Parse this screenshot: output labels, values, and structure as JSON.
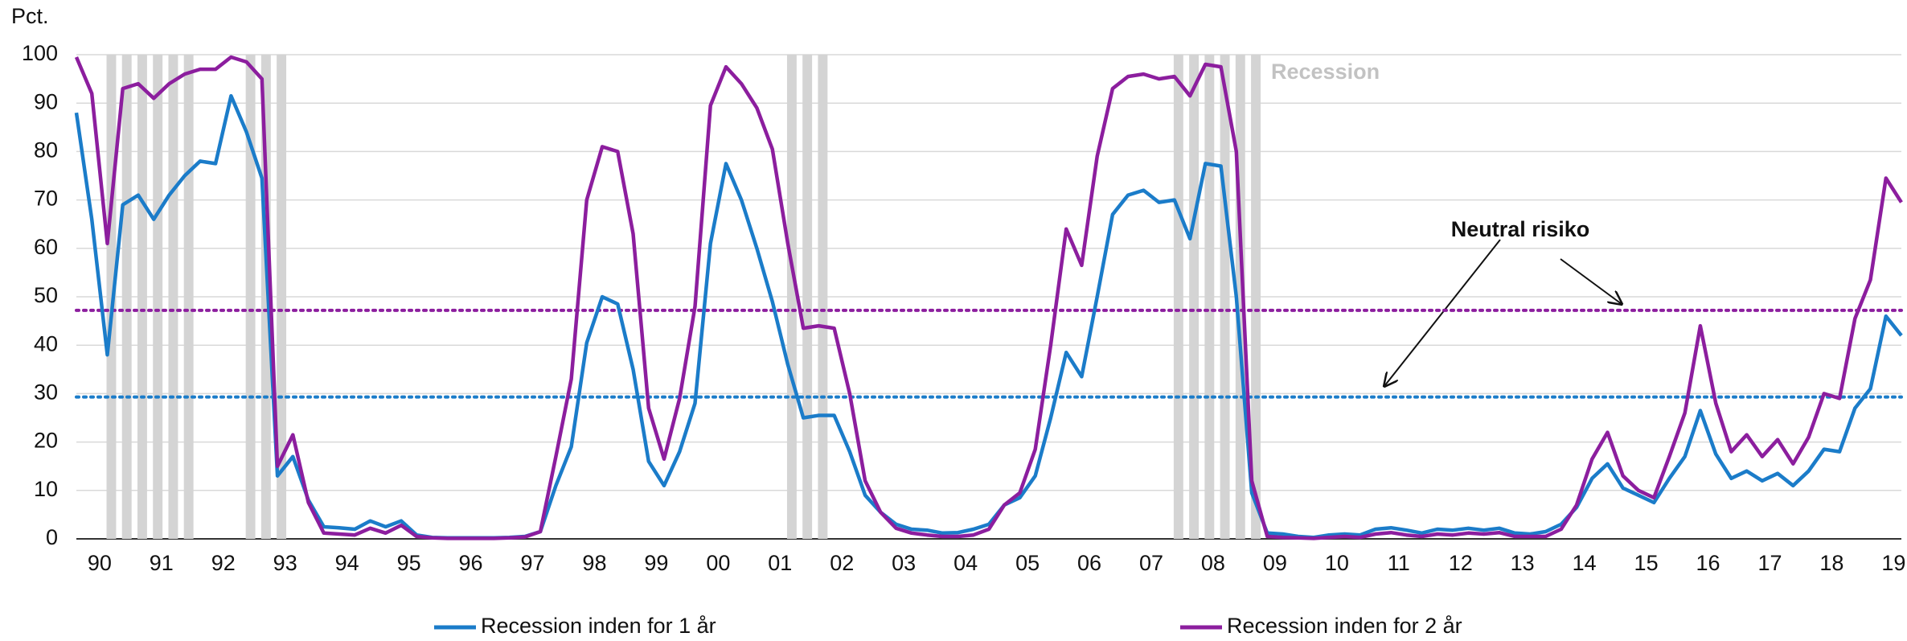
{
  "chart_data": {
    "type": "line",
    "y_label": "Pct.",
    "categories": [
      null,
      null,
      "90",
      null,
      null,
      null,
      "91",
      null,
      null,
      null,
      "92",
      null,
      null,
      null,
      "93",
      null,
      null,
      null,
      "94",
      null,
      null,
      null,
      "95",
      null,
      null,
      null,
      "96",
      null,
      null,
      null,
      "97",
      null,
      null,
      null,
      "98",
      null,
      null,
      null,
      "99",
      null,
      null,
      null,
      "00",
      null,
      null,
      null,
      "01",
      null,
      null,
      null,
      "02",
      null,
      null,
      null,
      "03",
      null,
      null,
      null,
      "04",
      null,
      null,
      null,
      "05",
      null,
      null,
      null,
      "06",
      null,
      null,
      null,
      "07",
      null,
      null,
      null,
      "08",
      null,
      null,
      null,
      "09",
      null,
      null,
      null,
      "10",
      null,
      null,
      null,
      "11",
      null,
      null,
      null,
      "12",
      null,
      null,
      null,
      "13",
      null,
      null,
      null,
      "14",
      null,
      null,
      null,
      "15",
      null,
      null,
      null,
      "16",
      null,
      null,
      null,
      "17",
      null,
      null,
      null,
      "18",
      null,
      null,
      null,
      "19"
    ],
    "series": [
      {
        "name": "Recession inden for 1 år",
        "color": "#1b7cc9",
        "values": [
          88,
          66,
          38,
          69,
          71,
          66,
          71,
          75,
          78,
          77.5,
          91.5,
          84,
          74.5,
          13,
          17,
          8,
          2.5,
          2.3,
          2,
          3.7,
          2.5,
          3.7,
          0.8,
          0.3,
          0.2,
          0.2,
          0.2,
          0.2,
          0.3,
          0.5,
          1.5,
          11,
          19,
          40.5,
          50,
          48.5,
          35,
          16,
          11,
          18,
          28,
          61,
          77.5,
          70,
          60,
          49,
          36,
          25,
          25.5,
          25.5,
          18,
          9,
          5.5,
          3,
          2,
          1.8,
          1.2,
          1.3,
          2,
          3,
          7,
          8.5,
          13,
          25,
          38.5,
          33.5,
          50,
          67,
          71,
          72,
          69.5,
          70,
          62,
          77.5,
          77,
          50,
          9.5,
          1.2,
          1,
          0.5,
          0.3,
          0.8,
          1,
          0.8,
          2,
          2.3,
          1.8,
          1.2,
          2,
          1.8,
          2.2,
          1.8,
          2.2,
          1.2,
          1,
          1.5,
          3,
          6.5,
          12.5,
          15.5,
          10.5,
          9,
          7.5,
          12.5,
          17,
          26.5,
          17.5,
          12.5,
          14,
          12,
          13.5,
          11,
          14,
          18.5,
          18,
          27,
          31,
          46,
          42
        ]
      },
      {
        "name": "Recession inden for 2 år",
        "color": "#8c1e9e",
        "values": [
          99.5,
          92,
          61,
          93,
          94,
          91,
          94,
          96,
          97,
          97,
          99.5,
          98.5,
          95,
          15,
          21.5,
          7.5,
          1.2,
          1,
          0.8,
          2.2,
          1.2,
          2.8,
          0.5,
          0.2,
          0.1,
          0.1,
          0.1,
          0.1,
          0.2,
          0.4,
          1.5,
          17,
          33,
          70,
          81,
          80,
          63,
          27,
          16.5,
          29,
          48,
          89.5,
          97.5,
          94,
          89,
          80.5,
          61,
          43.5,
          44,
          43.5,
          30,
          12,
          5.5,
          2.2,
          1.2,
          0.8,
          0.5,
          0.5,
          0.8,
          2,
          7,
          9.5,
          18.5,
          40,
          64,
          56.5,
          79,
          93,
          95.5,
          96,
          95,
          95.5,
          91.5,
          98,
          97.5,
          80,
          12,
          0.5,
          0.3,
          0.2,
          0.1,
          0.3,
          0.5,
          0.3,
          1,
          1.3,
          0.8,
          0.5,
          1,
          0.8,
          1.2,
          1,
          1.3,
          0.5,
          0.5,
          0.5,
          2,
          7,
          16.5,
          22,
          13,
          10,
          8.5,
          17,
          26,
          44,
          28,
          18,
          21.5,
          17,
          20.5,
          15.5,
          21,
          30,
          29,
          45.5,
          53.5,
          74.5,
          69.5
        ]
      }
    ],
    "recession": {
      "label": "Recession",
      "color": "#d4d4d4",
      "values": [
        0,
        0,
        1,
        1,
        1,
        1,
        1,
        1,
        0,
        0,
        0,
        1,
        1,
        1,
        0,
        0,
        0,
        0,
        0,
        0,
        0,
        0,
        0,
        0,
        0,
        0,
        0,
        0,
        0,
        0,
        0,
        0,
        0,
        0,
        0,
        0,
        0,
        0,
        0,
        0,
        0,
        0,
        0,
        0,
        0,
        0,
        1,
        1,
        1,
        0,
        0,
        0,
        0,
        0,
        0,
        0,
        0,
        0,
        0,
        0,
        0,
        0,
        0,
        0,
        0,
        0,
        0,
        0,
        0,
        0,
        0,
        1,
        1,
        1,
        1,
        1,
        1,
        0,
        0,
        0,
        0,
        0,
        0,
        0,
        0,
        0,
        0,
        0,
        0,
        0,
        0,
        0,
        0,
        0,
        0,
        0,
        0,
        0,
        0,
        0,
        0,
        0,
        0,
        0,
        0,
        0,
        0,
        0,
        0,
        0,
        0,
        0,
        0,
        0,
        0,
        0,
        0,
        0,
        0
      ]
    },
    "reference_lines": [
      {
        "value": 29.3,
        "color": "#1b7cc9"
      },
      {
        "value": 47.2,
        "color": "#8c1e9e"
      }
    ],
    "annotation": "Neutral risiko",
    "ylim": [
      0,
      100
    ],
    "yticks": [
      0,
      10,
      20,
      30,
      40,
      50,
      60,
      70,
      80,
      90,
      100
    ],
    "grid": true
  }
}
